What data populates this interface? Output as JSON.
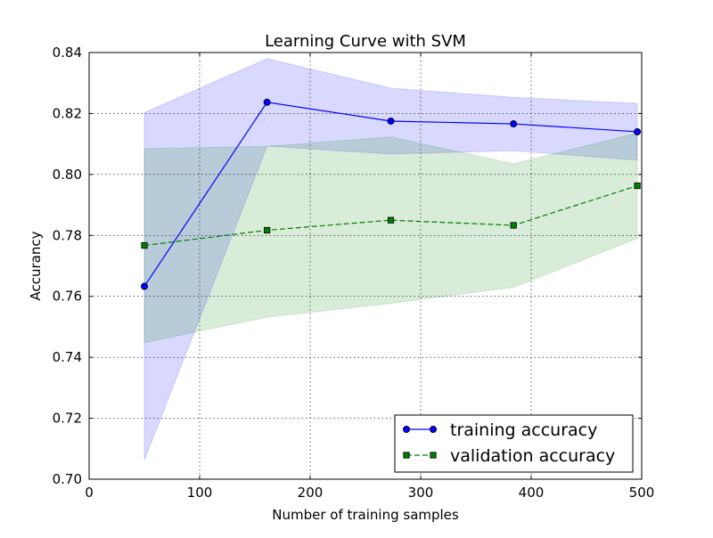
{
  "chart_data": {
    "type": "line",
    "title": "Learning Curve with SVM",
    "xlabel": "Number of training samples",
    "ylabel": "Accurancy",
    "xlim": [
      0,
      500
    ],
    "ylim": [
      0.7,
      0.84
    ],
    "xticks": [
      0,
      100,
      200,
      300,
      400,
      500
    ],
    "yticks": [
      0.7,
      0.72,
      0.74,
      0.76,
      0.78,
      0.8,
      0.82,
      0.84
    ],
    "xtick_labels": [
      "0",
      "100",
      "200",
      "300",
      "400",
      "500"
    ],
    "ytick_labels": [
      "0.70",
      "0.72",
      "0.74",
      "0.76",
      "0.78",
      "0.80",
      "0.82",
      "0.84"
    ],
    "grid": true,
    "legend_position": "lower-right",
    "x": [
      50,
      161,
      273,
      384,
      496
    ],
    "series": [
      {
        "name": "training accuracy",
        "marker": "circle",
        "line_style": "solid",
        "color": "#0000ff",
        "band_color": "#0000ff",
        "values": [
          0.7633,
          0.8237,
          0.8175,
          0.8166,
          0.814
        ],
        "band_upper": [
          0.8203,
          0.838,
          0.8283,
          0.8253,
          0.8233
        ],
        "band_lower": [
          0.7063,
          0.8093,
          0.8067,
          0.8078,
          0.8047
        ]
      },
      {
        "name": "validation accuracy",
        "marker": "square",
        "line_style": "dashed",
        "color": "#008000",
        "band_color": "#008000",
        "values": [
          0.7767,
          0.7817,
          0.785,
          0.7833,
          0.7963
        ],
        "band_upper": [
          0.8085,
          0.8092,
          0.8123,
          0.8035,
          0.8136
        ],
        "band_lower": [
          0.7448,
          0.7532,
          0.7577,
          0.763,
          0.779
        ]
      }
    ]
  }
}
